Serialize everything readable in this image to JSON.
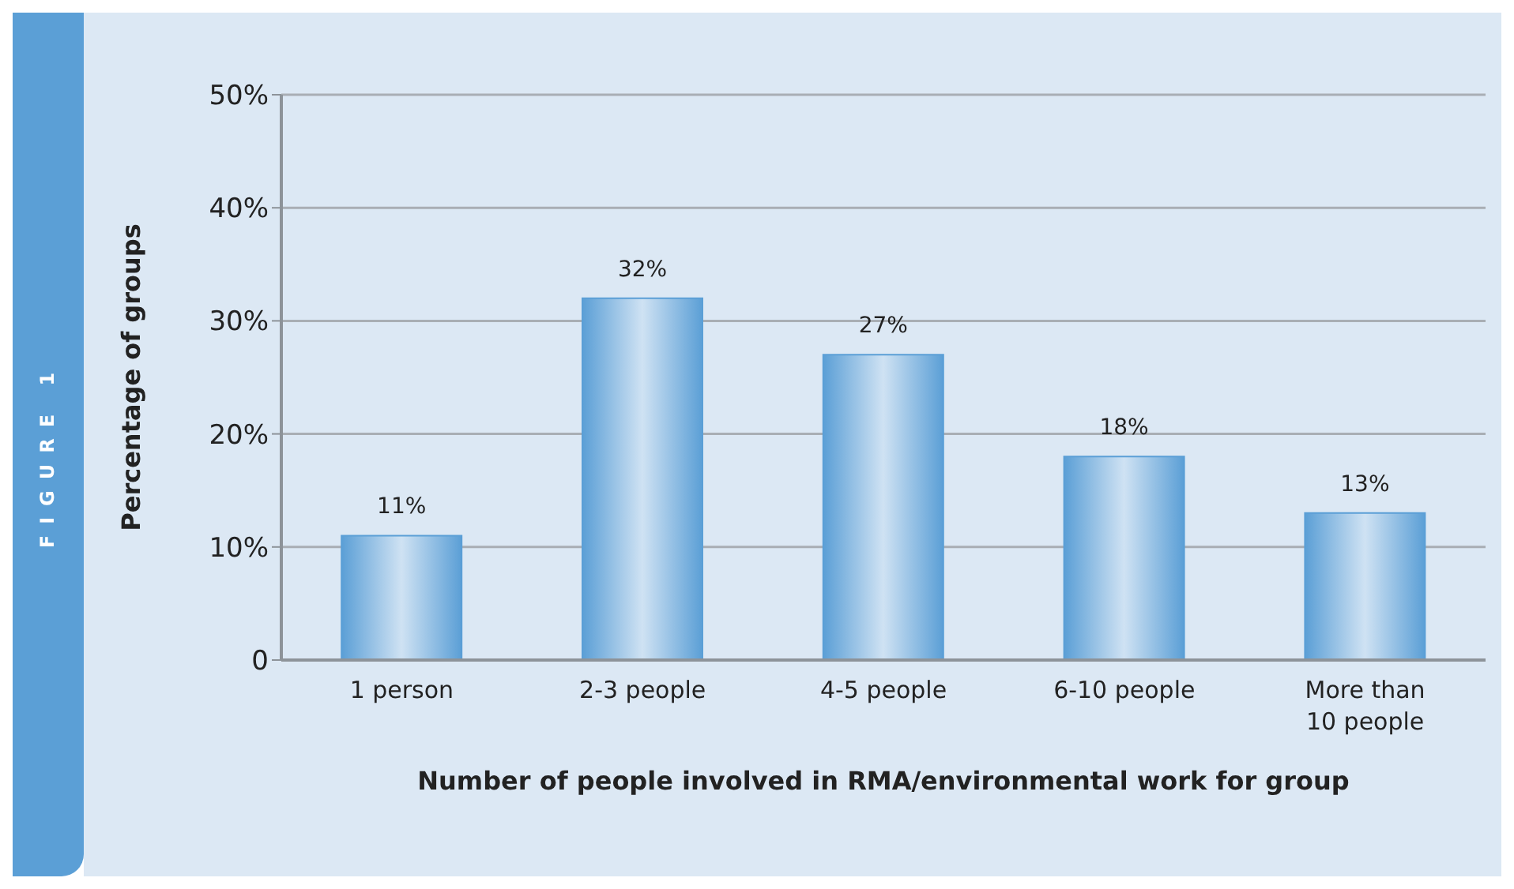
{
  "chart_data": {
    "type": "bar",
    "xlabel": "Number of people involved in RMA/environmental work for group",
    "ylabel": "Percentage of groups",
    "annotations": [
      "FIGURE 1"
    ],
    "categories": [
      "1 person",
      "2-3 people",
      "4-5 people",
      "6-10 people",
      "More than 10 people"
    ],
    "values": [
      11,
      32,
      27,
      18,
      13
    ],
    "value_labels": [
      "11%",
      "32%",
      "27%",
      "18%",
      "13%"
    ],
    "color": "#5b9fd6",
    "ylim": [
      0,
      50
    ],
    "yticks": [
      {
        "value": 0,
        "label": "0"
      },
      {
        "value": 10,
        "label": "10%"
      },
      {
        "value": 20,
        "label": "20%"
      },
      {
        "value": 30,
        "label": "30%"
      },
      {
        "value": 40,
        "label": "40%"
      },
      {
        "value": 50,
        "label": "50%"
      }
    ],
    "grid": "y"
  }
}
